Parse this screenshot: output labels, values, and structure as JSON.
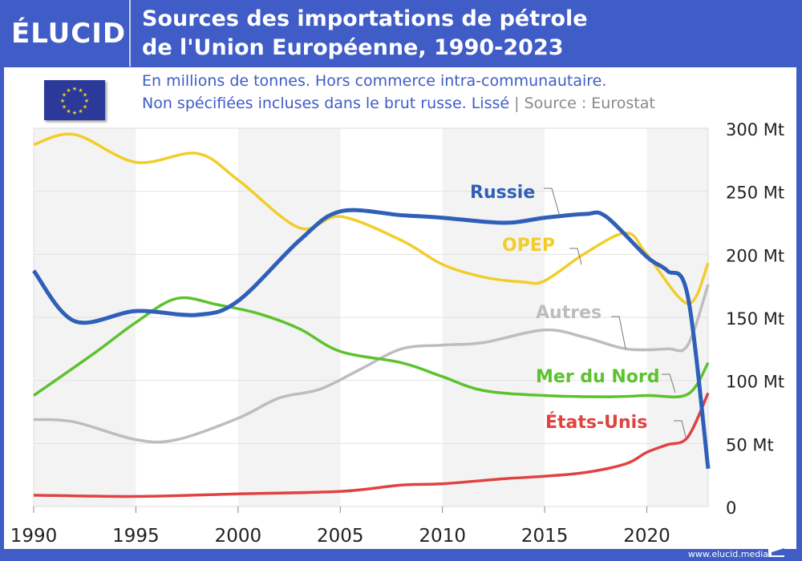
{
  "header": {
    "logo": "ÉLUCID",
    "title_line1": "Sources des importations de pétrole",
    "title_line2": "de l'Union Européenne, 1990-2023"
  },
  "subtitle": {
    "line1": "En millions de tonnes. Hors commerce intra-communautaire.",
    "line2": "Non spécifiées incluses dans le brut russe. Lissé",
    "separator": "|",
    "source": "Source : Eurostat"
  },
  "footer": {
    "url": "www.elucid.media"
  },
  "chart_data": {
    "type": "line",
    "title": "Sources des importations de pétrole de l'Union Européenne, 1990-2023",
    "xlim": [
      1990,
      2023
    ],
    "ylim": [
      0,
      300
    ],
    "x_ticks": [
      "1990",
      "1995",
      "2000",
      "2005",
      "2010",
      "2015",
      "2020"
    ],
    "y_ticks": [
      "0",
      "50 Mt",
      "100 Mt",
      "150 Mt",
      "200 Mt",
      "250 Mt",
      "300 Mt"
    ],
    "grid": true,
    "series": [
      {
        "name": "OPEP",
        "color": "#f2cd2a",
        "x": [
          1990,
          1992,
          1995,
          1998,
          2000,
          2003,
          2005,
          2008,
          2010,
          2012,
          2014,
          2015,
          2017,
          2019,
          2020,
          2022,
          2023
        ],
        "y": [
          287,
          295,
          273,
          280,
          259,
          221,
          230,
          211,
          192,
          182,
          178,
          179,
          201,
          217,
          200,
          161,
          193
        ]
      },
      {
        "name": "Russie",
        "color": "#2f5fb8",
        "x": [
          1990,
          1992,
          1995,
          1998,
          2000,
          2003,
          2005,
          2008,
          2010,
          2013,
          2015,
          2017,
          2018,
          2020,
          2021,
          2022,
          2023
        ],
        "y": [
          187,
          147,
          155,
          152,
          163,
          211,
          234,
          231,
          229,
          225,
          229,
          232,
          230,
          198,
          187,
          167,
          30
        ]
      },
      {
        "name": "Autres",
        "color": "#bdbdbd",
        "x": [
          1990,
          1992,
          1995,
          1997,
          2000,
          2002,
          2004,
          2006,
          2008,
          2010,
          2012,
          2015,
          2017,
          2019,
          2021,
          2022,
          2023
        ],
        "y": [
          69,
          67,
          53,
          53,
          70,
          86,
          93,
          109,
          125,
          128,
          130,
          140,
          134,
          125,
          125,
          128,
          176
        ]
      },
      {
        "name": "Mer du Nord",
        "color": "#5cc22e",
        "x": [
          1990,
          1993,
          1995,
          1997,
          1999,
          2001,
          2003,
          2005,
          2008,
          2010,
          2012,
          2015,
          2018,
          2020,
          2022,
          2023
        ],
        "y": [
          88,
          122,
          146,
          165,
          160,
          153,
          141,
          123,
          114,
          103,
          92,
          88,
          87,
          88,
          89,
          114
        ]
      },
      {
        "name": "États-Unis",
        "color": "#e04242",
        "x": [
          1990,
          1995,
          2000,
          2005,
          2008,
          2010,
          2013,
          2015,
          2017,
          2019,
          2020,
          2021,
          2022,
          2023
        ],
        "y": [
          9,
          8,
          10,
          12,
          17,
          18,
          22,
          24,
          27,
          34,
          43,
          49,
          55,
          90
        ]
      }
    ]
  }
}
